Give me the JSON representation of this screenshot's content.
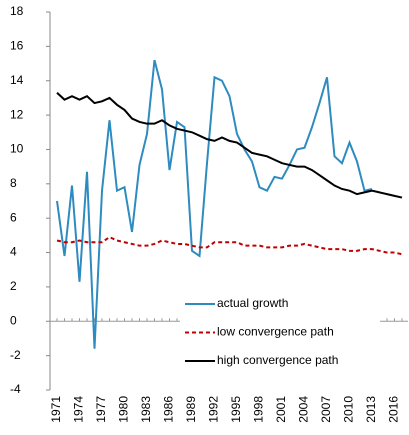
{
  "chart_data": {
    "type": "line",
    "categories": [
      "1971",
      null,
      null,
      "1974",
      null,
      null,
      "1977",
      null,
      null,
      "1980",
      null,
      null,
      "1983",
      null,
      null,
      "1986",
      null,
      null,
      "1989",
      null,
      null,
      "1992",
      null,
      null,
      "1995",
      null,
      null,
      "1998",
      null,
      null,
      "2001",
      null,
      null,
      "2004",
      null,
      null,
      "2007",
      null,
      null,
      "2010",
      null,
      null,
      "2013",
      null,
      null,
      "2016",
      null
    ],
    "series": [
      {
        "name": "actual growth",
        "color": "#2e8bc0",
        "dash": "solid",
        "values": [
          7.0,
          3.8,
          7.9,
          2.3,
          8.7,
          -1.6,
          7.6,
          11.7,
          7.6,
          7.8,
          5.2,
          9.1,
          10.9,
          15.2,
          13.5,
          8.8,
          11.6,
          11.3,
          4.1,
          3.8,
          9.2,
          14.2,
          14.0,
          13.1,
          10.9,
          10.0,
          9.3,
          7.8,
          7.6,
          8.4,
          8.3,
          9.1,
          10.0,
          10.1,
          11.3,
          12.7,
          14.2,
          9.6,
          9.2,
          10.4,
          9.3,
          7.6,
          7.7,
          null,
          null,
          null,
          null
        ]
      },
      {
        "name": "low convergence path",
        "color": "#c00000",
        "dash": "dashed",
        "values": [
          4.7,
          4.6,
          4.6,
          4.7,
          4.6,
          4.6,
          4.6,
          4.9,
          4.7,
          4.6,
          4.5,
          4.4,
          4.4,
          4.5,
          4.7,
          4.6,
          4.5,
          4.5,
          4.4,
          4.3,
          4.3,
          4.6,
          4.6,
          4.6,
          4.6,
          4.4,
          4.4,
          4.4,
          4.3,
          4.3,
          4.3,
          4.4,
          4.4,
          4.5,
          4.4,
          4.3,
          4.2,
          4.2,
          4.2,
          4.1,
          4.1,
          4.2,
          4.2,
          4.1,
          4.0,
          4.0,
          3.9
        ]
      },
      {
        "name": "high convergence path",
        "color": "#000000",
        "dash": "solid",
        "values": [
          13.3,
          12.9,
          13.1,
          12.9,
          13.1,
          12.7,
          12.8,
          13.0,
          12.6,
          12.3,
          11.8,
          11.6,
          11.5,
          11.5,
          11.7,
          11.4,
          11.2,
          11.1,
          11.0,
          10.8,
          10.6,
          10.5,
          10.7,
          10.5,
          10.4,
          10.1,
          9.8,
          9.7,
          9.6,
          9.4,
          9.2,
          9.1,
          9.0,
          9.0,
          8.8,
          8.5,
          8.2,
          7.9,
          7.7,
          7.6,
          7.4,
          7.5,
          7.6,
          7.5,
          7.4,
          7.3,
          7.2
        ]
      }
    ],
    "ylim": [
      -4,
      18
    ],
    "yticks": [
      -4,
      -2,
      0,
      2,
      4,
      6,
      8,
      10,
      12,
      14,
      16,
      18
    ],
    "grid": false,
    "legend": "bottom"
  }
}
